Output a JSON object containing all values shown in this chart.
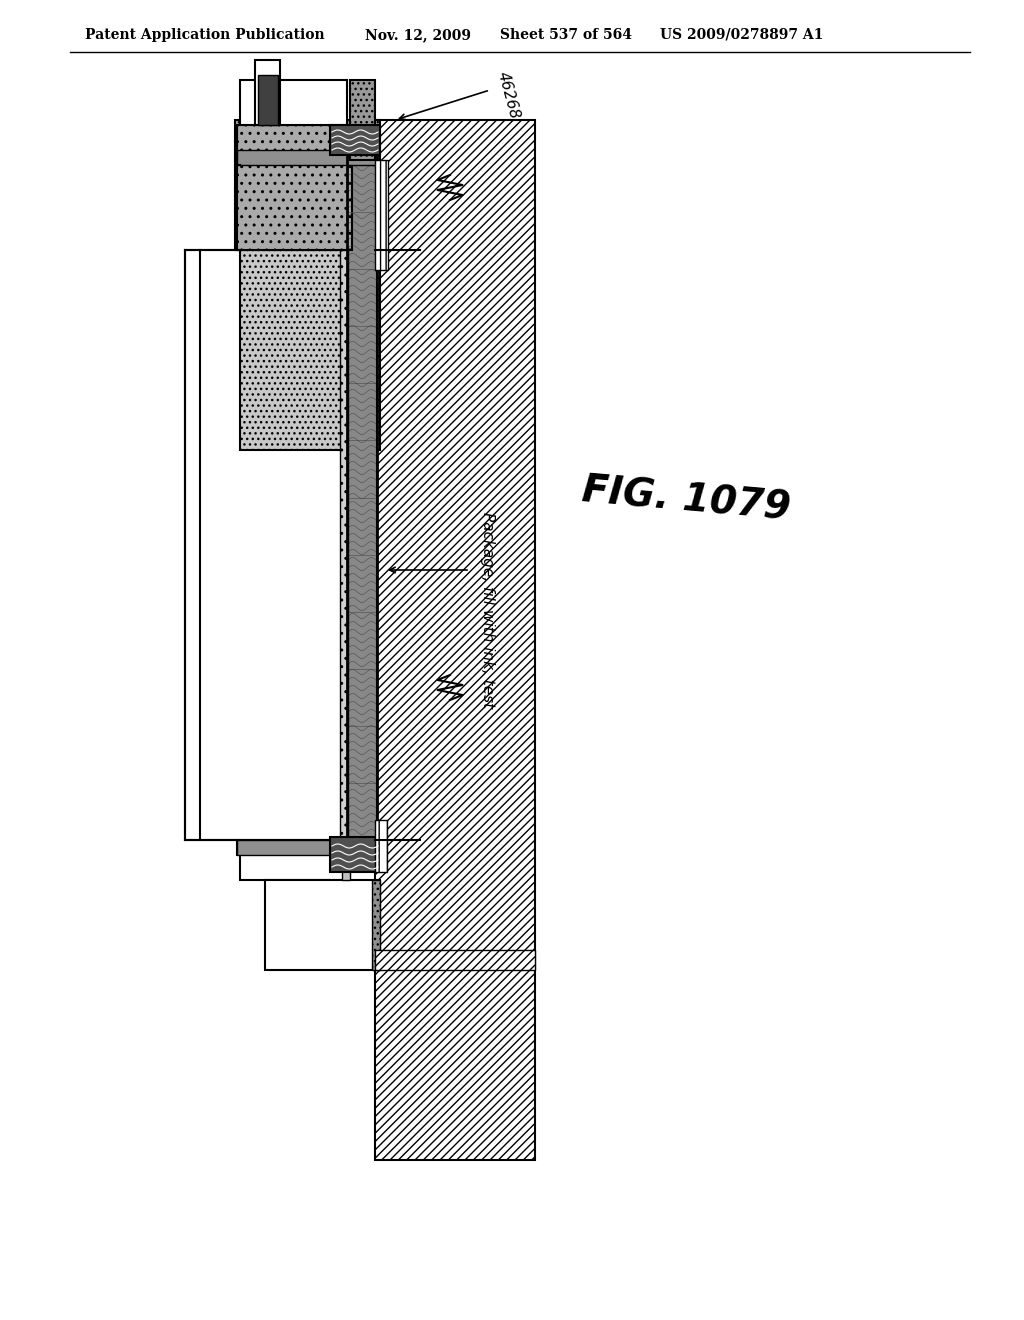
{
  "title_text": "Patent Application Publication",
  "title_date": "Nov. 12, 2009",
  "title_sheet": "Sheet 537 of 564",
  "title_patent": "US 2009/0278897 A1",
  "fig_label": "FIG. 1079",
  "ref_label": "46268",
  "annotation_label": "Package, fill with ink, test",
  "bg_color": "#ffffff",
  "line_color": "#000000",
  "hatch_color": "#000000"
}
